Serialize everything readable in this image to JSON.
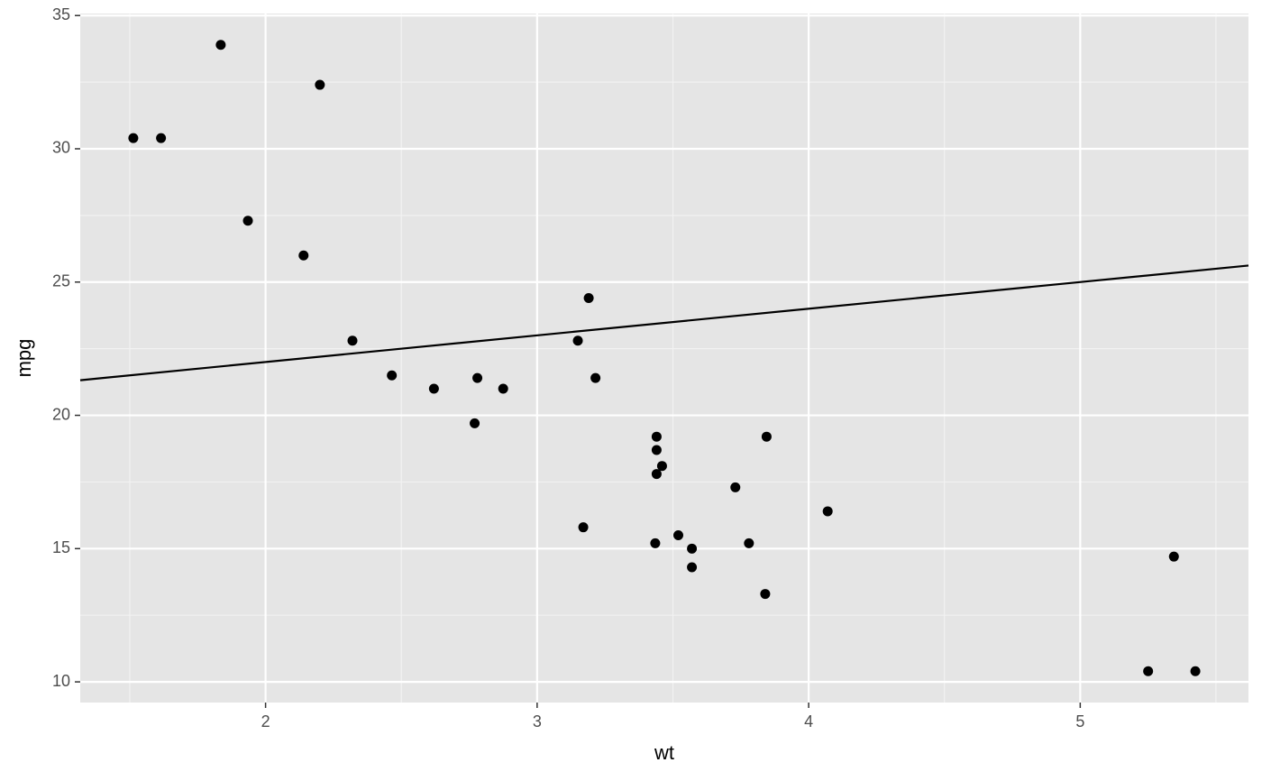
{
  "chart_data": {
    "type": "scatter",
    "x_label": "wt",
    "y_label": "mpg",
    "x": [
      2.62,
      2.875,
      2.32,
      3.215,
      3.44,
      3.46,
      3.57,
      3.19,
      3.15,
      3.44,
      3.44,
      4.07,
      3.73,
      3.78,
      5.25,
      5.424,
      5.345,
      2.2,
      1.615,
      1.835,
      2.465,
      3.52,
      3.435,
      3.84,
      3.845,
      1.935,
      2.14,
      1.513,
      3.17,
      2.77,
      3.57,
      2.78
    ],
    "values": [
      21.0,
      21.0,
      22.8,
      21.4,
      18.7,
      18.1,
      14.3,
      24.4,
      22.8,
      19.2,
      17.8,
      16.4,
      17.3,
      15.2,
      10.4,
      10.4,
      14.7,
      32.4,
      30.4,
      33.9,
      21.5,
      15.5,
      15.2,
      13.3,
      19.2,
      27.3,
      26.0,
      30.4,
      15.8,
      19.7,
      15.0,
      21.4
    ],
    "color": "#000000",
    "abline": {
      "intercept": 20,
      "slope": 1,
      "color": "#000000"
    },
    "xlim": [
      1.3175,
      5.6196
    ],
    "ylim": [
      9.225,
      35.075
    ],
    "xticks": [
      2,
      3,
      4,
      5
    ],
    "yticks": [
      10,
      15,
      20,
      25,
      30,
      35
    ],
    "xminor": [
      1.5,
      2.5,
      3.5,
      4.5,
      5.5
    ],
    "yminor": [
      12.5,
      17.5,
      22.5,
      27.5,
      32.5
    ],
    "grid": true
  }
}
